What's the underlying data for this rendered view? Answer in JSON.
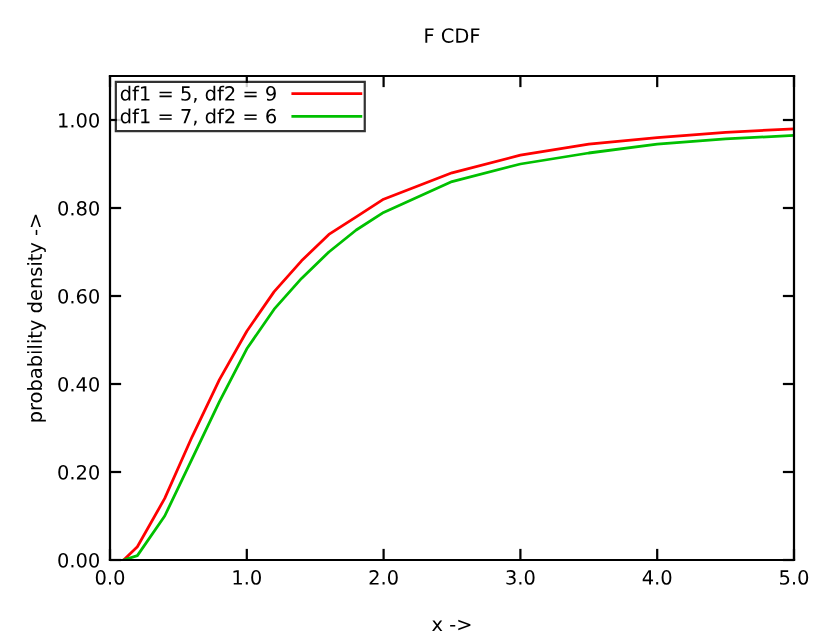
{
  "chart_data": {
    "type": "line",
    "title": "F CDF",
    "xlabel": "x ->",
    "ylabel": "probability density ->",
    "xlim": [
      0,
      5
    ],
    "ylim": [
      0,
      1.1
    ],
    "xticks": [
      {
        "value": 0,
        "label": "0.0"
      },
      {
        "value": 1,
        "label": "1.0"
      },
      {
        "value": 2,
        "label": "2.0"
      },
      {
        "value": 3,
        "label": "3.0"
      },
      {
        "value": 4,
        "label": "4.0"
      },
      {
        "value": 5,
        "label": "5.0"
      }
    ],
    "yticks": [
      {
        "value": 0,
        "label": "0.00"
      },
      {
        "value": 0.2,
        "label": "0.20"
      },
      {
        "value": 0.4,
        "label": "0.40"
      },
      {
        "value": 0.6,
        "label": "0.60"
      },
      {
        "value": 0.8,
        "label": "0.80"
      },
      {
        "value": 1.0,
        "label": "1.00"
      }
    ],
    "x": [
      0.1,
      0.2,
      0.4,
      0.6,
      0.8,
      1.0,
      1.2,
      1.4,
      1.6,
      1.8,
      2.0,
      2.5,
      3.0,
      3.5,
      4.0,
      4.5,
      5.0
    ],
    "series": [
      {
        "name": "df1 = 5, df2 = 9",
        "color": "#ff0000",
        "values": [
          0,
          0.03,
          0.14,
          0.28,
          0.41,
          0.52,
          0.61,
          0.68,
          0.74,
          0.78,
          0.82,
          0.88,
          0.92,
          0.945,
          0.96,
          0.972,
          0.98
        ]
      },
      {
        "name": "df1 = 7, df2 = 6",
        "color": "#00c000",
        "values": [
          0,
          0.01,
          0.1,
          0.23,
          0.36,
          0.48,
          0.57,
          0.64,
          0.7,
          0.75,
          0.79,
          0.86,
          0.9,
          0.925,
          0.945,
          0.957,
          0.965
        ]
      }
    ],
    "legend": "top left",
    "grid": false,
    "marker": "none",
    "line_style": "solid"
  }
}
